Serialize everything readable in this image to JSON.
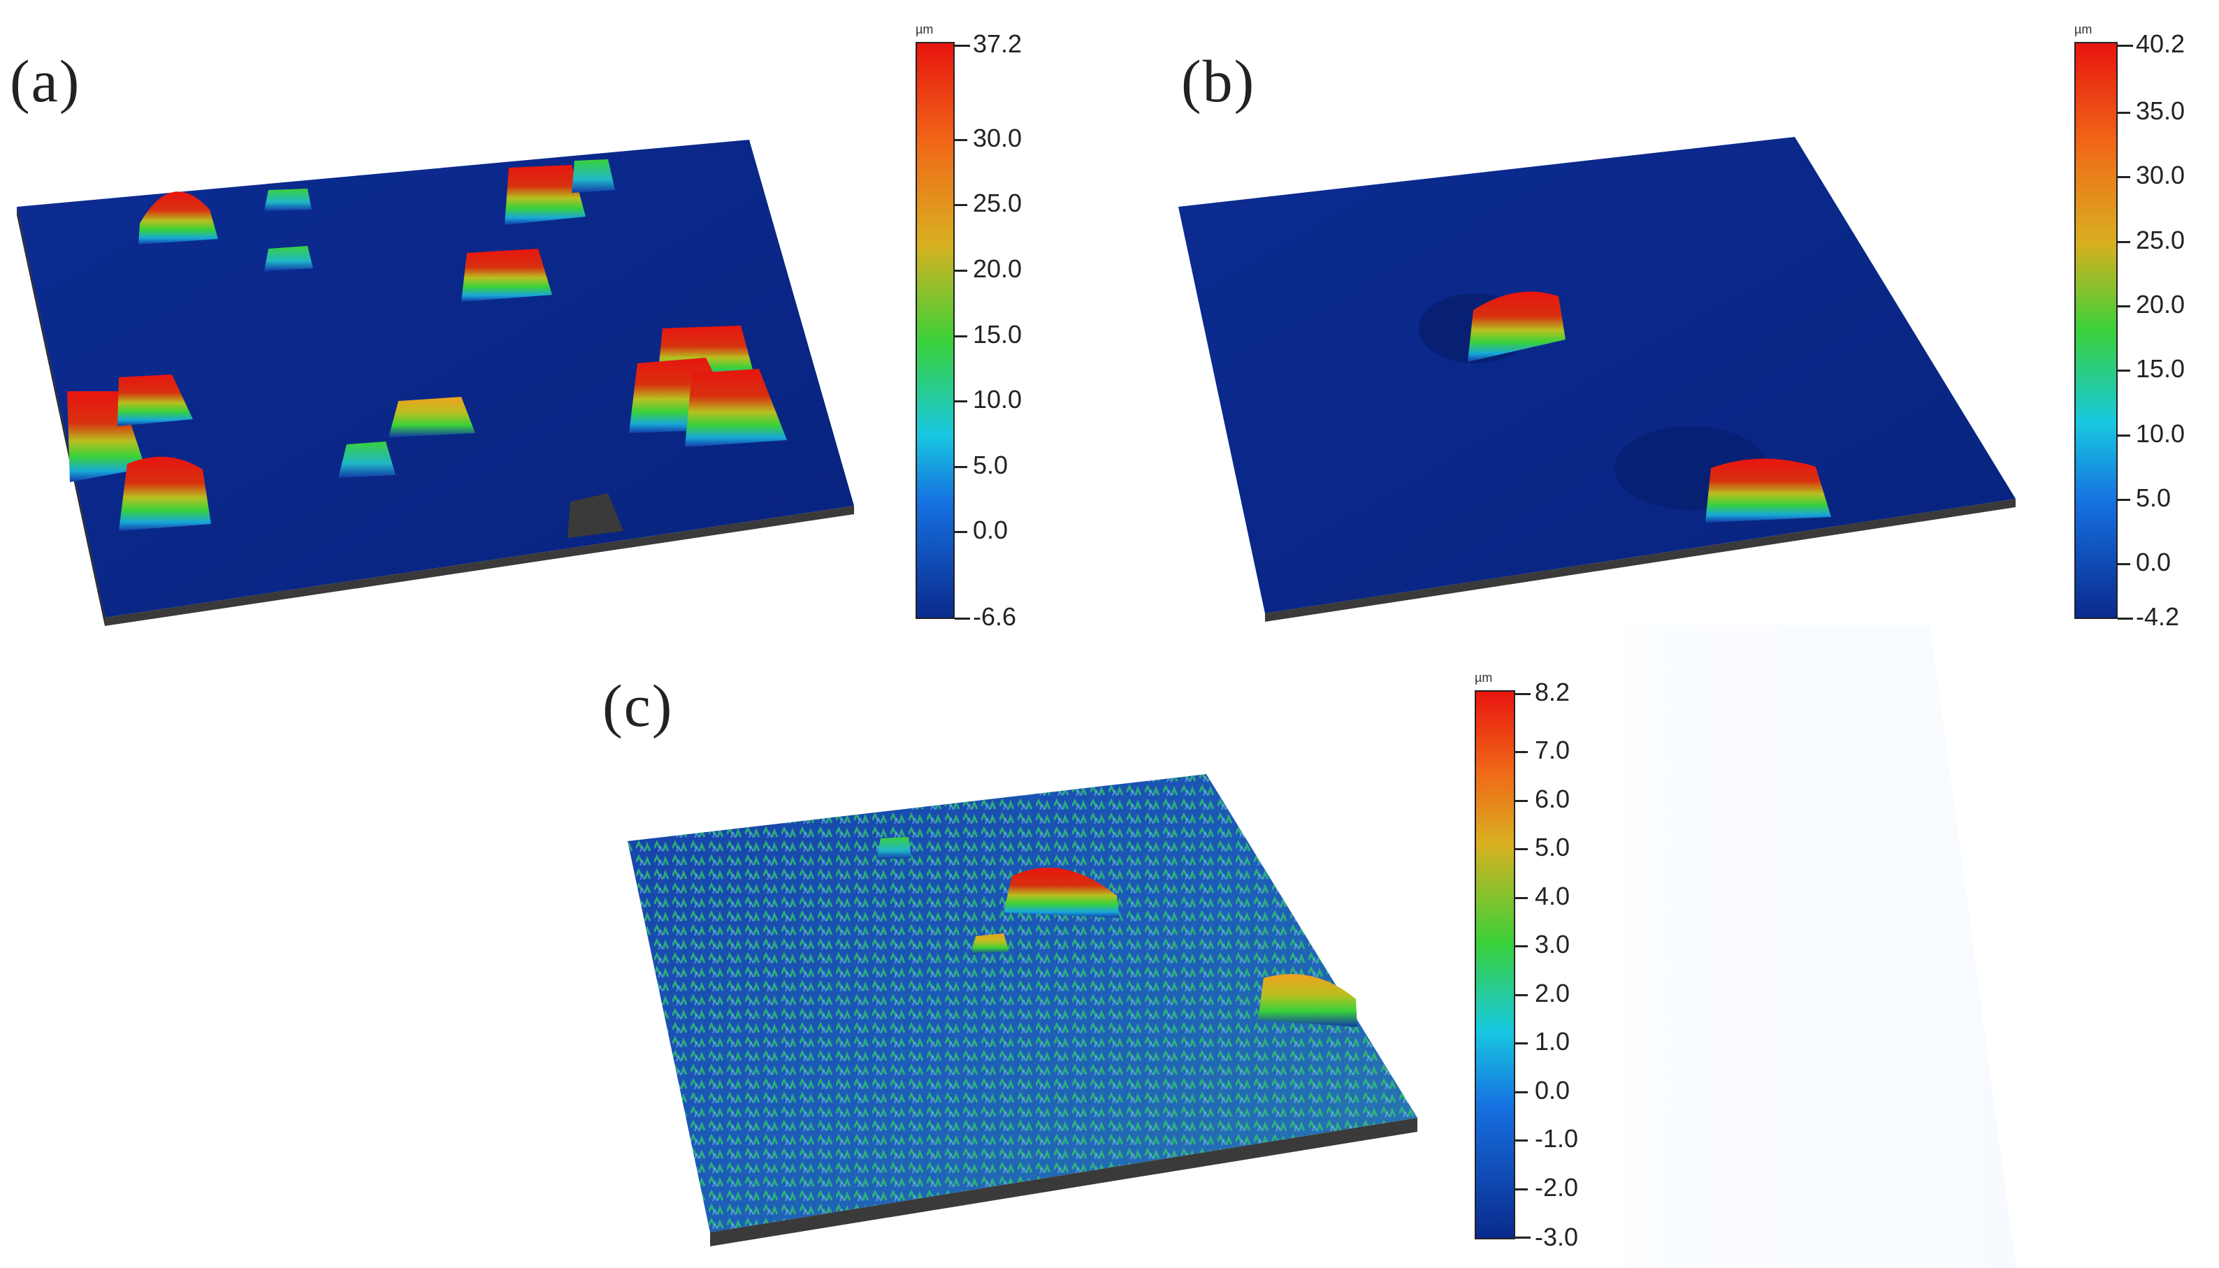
{
  "panels": [
    {
      "id": "a",
      "label": "(a)",
      "colorbar": {
        "unit": "µm",
        "max_label": "37.2",
        "min_label": "-6.6",
        "ticks": [
          "30.0",
          "25.0",
          "20.0",
          "15.0",
          "10.0",
          "5.0",
          "0.0"
        ],
        "min": -6.6,
        "max": 37.2
      }
    },
    {
      "id": "b",
      "label": "(b)",
      "colorbar": {
        "unit": "µm",
        "max_label": "40.2",
        "min_label": "-4.2",
        "ticks": [
          "35.0",
          "30.0",
          "25.0",
          "20.0",
          "15.0",
          "10.0",
          "5.0",
          "0.0"
        ],
        "min": -4.2,
        "max": 40.2
      }
    },
    {
      "id": "c",
      "label": "(c)",
      "colorbar": {
        "unit": "µm",
        "max_label": "8.2",
        "min_label": "-3.0",
        "ticks": [
          "7.0",
          "6.0",
          "5.0",
          "4.0",
          "3.0",
          "2.0",
          "1.0",
          "0.0",
          "-1.0",
          "-2.0"
        ],
        "min": -3.0,
        "max": 8.2
      }
    }
  ],
  "colors": {
    "surface_base": "#0a2a8c",
    "surface_dark": "#061e6e",
    "base_edge": "#3a3a3a",
    "peak_high": "#e8150f",
    "peak_mid": "#f0a020",
    "peak_green": "#3ad13a",
    "peak_cyan": "#18c8e0"
  }
}
